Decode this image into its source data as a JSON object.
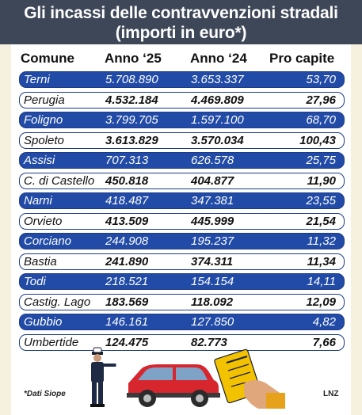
{
  "title": {
    "line1": "Gli incassi delle contravvenzioni stradali",
    "line2": "(importi in euro*)"
  },
  "chart_data": {
    "type": "table",
    "columns": [
      "Comune",
      "Anno ‘25",
      "Anno ‘24",
      "Pro capite"
    ],
    "rows": [
      {
        "comune": "Terni",
        "anno25": "5.708.890",
        "anno24": "3.653.337",
        "pro_capite": "53,70"
      },
      {
        "comune": "Perugia",
        "anno25": "4.532.184",
        "anno24": "4.469.809",
        "pro_capite": "27,96"
      },
      {
        "comune": "Foligno",
        "anno25": "3.799.705",
        "anno24": "1.597.100",
        "pro_capite": "68,70"
      },
      {
        "comune": "Spoleto",
        "anno25": "3.613.829",
        "anno24": "3.570.034",
        "pro_capite": "100,43"
      },
      {
        "comune": "Assisi",
        "anno25": "707.313",
        "anno24": "626.578",
        "pro_capite": "25,75"
      },
      {
        "comune": "C. di Castello",
        "anno25": "450.818",
        "anno24": "404.877",
        "pro_capite": "11,90"
      },
      {
        "comune": "Narni",
        "anno25": "418.487",
        "anno24": "347.381",
        "pro_capite": "23,55"
      },
      {
        "comune": "Orvieto",
        "anno25": "413.509",
        "anno24": "445.999",
        "pro_capite": "21,54"
      },
      {
        "comune": "Corciano",
        "anno25": "244.908",
        "anno24": "195.237",
        "pro_capite": "11,32"
      },
      {
        "comune": "Bastia",
        "anno25": "241.890",
        "anno24": "374.311",
        "pro_capite": "11,34"
      },
      {
        "comune": "Todi",
        "anno25": "218.521",
        "anno24": "154.154",
        "pro_capite": "14,11"
      },
      {
        "comune": "Castig. Lago",
        "anno25": "183.569",
        "anno24": "118.092",
        "pro_capite": "12,09"
      },
      {
        "comune": "Gubbio",
        "anno25": "146.161",
        "anno24": "127.850",
        "pro_capite": "4,82"
      },
      {
        "comune": "Umbertide",
        "anno25": "124.475",
        "anno24": "82.773",
        "pro_capite": "7,66"
      }
    ]
  },
  "footer": {
    "note": "*Dati Siope",
    "credit": "LNZ"
  },
  "colors": {
    "title_bg": "#3d4757",
    "row_dark": "#214ba6",
    "row_border": "#1d3b8a",
    "background": "#f6f1de",
    "car": "#d7262e",
    "ticket": "#f2c200"
  },
  "icons": [
    "traffic-police-officer-icon",
    "red-car-icon",
    "parking-ticket-icon",
    "hand-icon"
  ]
}
